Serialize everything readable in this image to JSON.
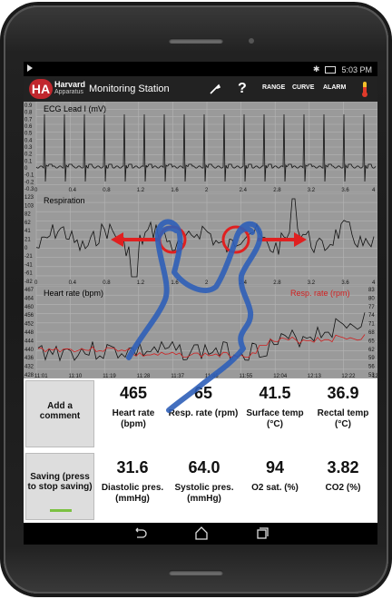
{
  "status": {
    "time": "5:03 PM"
  },
  "app": {
    "logo_line1": "Harvard",
    "logo_line2": "Apparatus",
    "logo_mark": "HA",
    "title": "Monitoring Station",
    "help_label": "?",
    "range_label": "RANGE",
    "curve_label": "CURVE",
    "alarm_label": "ALARM"
  },
  "charts": {
    "ecg": {
      "title": "ECG Lead I (mV)",
      "yticks": [
        "0.9",
        "0.8",
        "0.7",
        "0.6",
        "0.5",
        "0.4",
        "0.3",
        "0.2",
        "0.1",
        "0",
        "-0.1",
        "-0.2",
        "-0.3"
      ],
      "xticks": [
        "0",
        "0.4",
        "0.8",
        "1.2",
        "1.6",
        "2",
        "2.4",
        "2.8",
        "3.2",
        "3.6",
        "4"
      ]
    },
    "resp": {
      "title": "Respiration",
      "yticks": [
        "123",
        "103",
        "82",
        "62",
        "41",
        "21",
        "0",
        "-21",
        "-41",
        "-61",
        "-82"
      ],
      "xticks": [
        "0",
        "0.4",
        "0.8",
        "1.2",
        "1.6",
        "2",
        "2.4",
        "2.8",
        "3.2",
        "3.6",
        "4"
      ]
    },
    "hr": {
      "title": "Heart rate (bpm)",
      "title2": "Resp. rate (rpm)",
      "yticks_left": [
        "467",
        "464",
        "460",
        "456",
        "452",
        "448",
        "444",
        "440",
        "436",
        "432",
        "428"
      ],
      "yticks_right": [
        "83",
        "80",
        "77",
        "74",
        "71",
        "68",
        "65",
        "62",
        "59",
        "56",
        "53"
      ],
      "xticks": [
        "11:01",
        "11:10",
        "11:19",
        "11:28",
        "11:37",
        "11:46",
        "11:55",
        "12:04",
        "12:13",
        "12:22",
        "12:31"
      ]
    }
  },
  "buttons": {
    "add_comment": "Add a comment",
    "saving": "Saving (press to stop saving)"
  },
  "readings": [
    {
      "value": "465",
      "label": "Heart rate (bpm)"
    },
    {
      "value": "65",
      "label": "Resp. rate (rpm)"
    },
    {
      "value": "41.5",
      "label": "Surface temp (°C)"
    },
    {
      "value": "36.9",
      "label": "Rectal temp (°C)"
    },
    {
      "value": "31.6",
      "label": "Diastolic pres. (mmHg)"
    },
    {
      "value": "64.0",
      "label": "Systolic pres. (mmHg)"
    },
    {
      "value": "94",
      "label": "O2 sat. (%)"
    },
    {
      "value": "3.82",
      "label": "CO2 (%)"
    }
  ],
  "colors": {
    "accent": "#c1272d",
    "chart_bg": "#9a9a9a",
    "grid": "#b5b5b5",
    "gesture_blue": "#2f5fb8",
    "arrow_red": "#e02020",
    "saving_bar": "#7bc142"
  }
}
